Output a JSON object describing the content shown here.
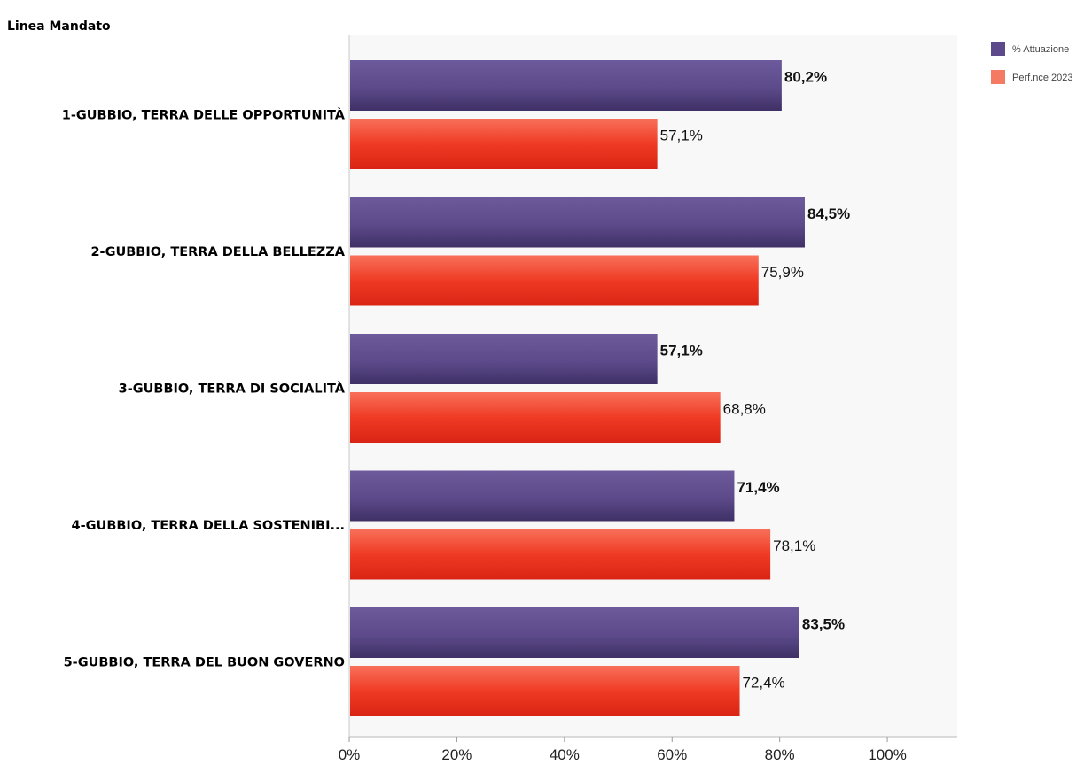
{
  "chart_data": {
    "type": "bar",
    "orientation": "horizontal",
    "axis_title": "Linea Mandato",
    "categories": [
      "1-GUBBIO, TERRA DELLE OPPORTUNITÀ",
      "2-GUBBIO, TERRA DELLA BELLEZZA",
      "3-GUBBIO, TERRA DI SOCIALITÀ",
      "4-GUBBIO, TERRA DELLA SOSTENIBI...",
      "5-GUBBIO, TERRA DEL BUON GOVERNO"
    ],
    "series": [
      {
        "name": "% Attuazione",
        "values": [
          80.2,
          84.5,
          57.1,
          71.4,
          83.5
        ],
        "labels": [
          "80,2%",
          "84,5%",
          "57,1%",
          "71,4%",
          "83,5%"
        ],
        "color": "#5c4a8a",
        "label_bold": true
      },
      {
        "name": "Perf.nce 2023",
        "values": [
          57.1,
          75.9,
          68.8,
          78.1,
          72.4
        ],
        "labels": [
          "57,1%",
          "75,9%",
          "68,8%",
          "78,1%",
          "72,4%"
        ],
        "color": "#ef3b24",
        "label_bold": false
      }
    ],
    "x_ticks": [
      "0%",
      "20%",
      "40%",
      "60%",
      "80%",
      "100%"
    ],
    "xlim": [
      0,
      113
    ],
    "grid": false,
    "legend_position": "top-right"
  }
}
